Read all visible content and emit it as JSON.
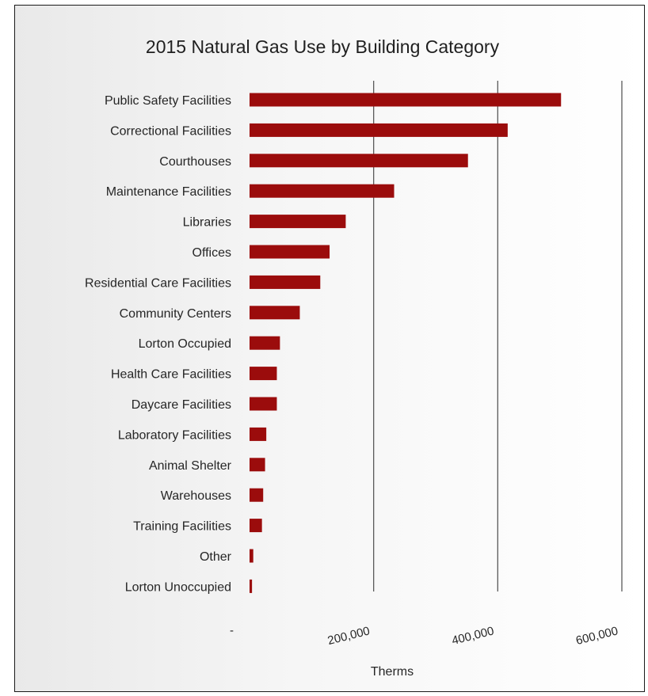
{
  "chart_data": {
    "type": "bar",
    "orientation": "horizontal",
    "title": "2015 Natural Gas Use by Building Category",
    "xlabel": "Therms",
    "ylabel": "",
    "xlim": [
      0,
      600000
    ],
    "xticks": [
      0,
      200000,
      400000,
      600000
    ],
    "xtick_labels": [
      "-",
      "200,000",
      "400,000",
      "600,000"
    ],
    "grid": true,
    "legend": "none",
    "bar_color": "#9b0c0c",
    "categories": [
      "Public Safety Facilities",
      "Correctional Facilities",
      "Courthouses",
      "Maintenance Facilities",
      "Libraries",
      "Offices",
      "Residential Care Facilities",
      "Community Centers",
      "Lorton Occupied",
      "Health Care Facilities",
      "Daycare Facilities",
      "Laboratory Facilities",
      "Animal Shelter",
      "Warehouses",
      "Training Facilities",
      "Other",
      "Lorton Unoccupied"
    ],
    "values": [
      502000,
      416000,
      352000,
      233000,
      155000,
      129000,
      114000,
      81000,
      49000,
      44000,
      44000,
      27000,
      25000,
      22000,
      20000,
      6000,
      4000
    ]
  }
}
